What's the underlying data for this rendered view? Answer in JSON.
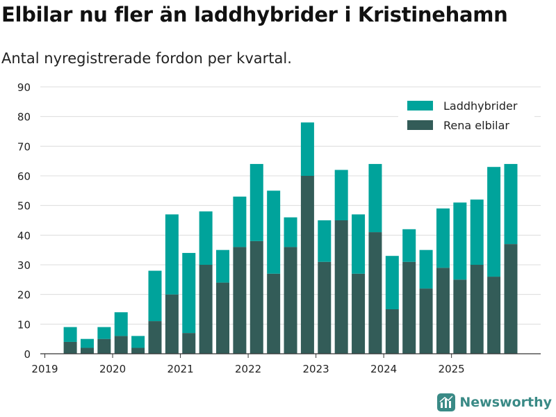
{
  "title": "Elbilar nu fler än laddhybrider i Kristinehamn",
  "subtitle": "Antal nyregistrerade fordon per kvartal.",
  "brand": "Newsworthy",
  "colors": {
    "rena_elbilar": "#335c58",
    "laddhybrider": "#00a39b",
    "grid": "#dcdcdc",
    "axis": "#333333",
    "brand": "#3a8a86"
  },
  "chart_data": {
    "type": "bar",
    "stacked": true,
    "title": "Elbilar nu fler än laddhybrider i Kristinehamn",
    "subtitle": "Antal nyregistrerade fordon per kvartal.",
    "xlabel": "",
    "ylabel": "",
    "ylim": [
      0,
      90
    ],
    "yticks": [
      0,
      10,
      20,
      30,
      40,
      50,
      60,
      70,
      80,
      90
    ],
    "year_ticks": [
      "2019",
      "2020",
      "2021",
      "2022",
      "2023",
      "2024",
      "2025"
    ],
    "legend_position": "top-right",
    "categories": [
      "2019 Q2",
      "2019 Q3",
      "2019 Q4",
      "2020 Q1",
      "2020 Q2",
      "2020 Q3",
      "2020 Q4",
      "2021 Q1",
      "2021 Q2",
      "2021 Q3",
      "2021 Q4",
      "2022 Q1",
      "2022 Q2",
      "2022 Q3",
      "2022 Q4",
      "2023 Q1",
      "2023 Q2",
      "2023 Q3",
      "2023 Q4",
      "2024 Q1",
      "2024 Q2",
      "2024 Q3",
      "2024 Q4",
      "2025 Q1",
      "2025 Q2",
      "2025 Q3",
      "2025 Q4"
    ],
    "series": [
      {
        "name": "Rena elbilar",
        "values": [
          4,
          2,
          5,
          6,
          2,
          11,
          20,
          7,
          30,
          24,
          36,
          38,
          27,
          36,
          60,
          31,
          45,
          27,
          41,
          15,
          31,
          22,
          29,
          25,
          30,
          26,
          37
        ]
      },
      {
        "name": "Laddhybrider",
        "values": [
          5,
          3,
          4,
          8,
          4,
          17,
          27,
          27,
          18,
          11,
          17,
          26,
          28,
          10,
          18,
          14,
          17,
          20,
          23,
          18,
          11,
          13,
          20,
          26,
          22,
          37,
          27
        ]
      }
    ]
  }
}
